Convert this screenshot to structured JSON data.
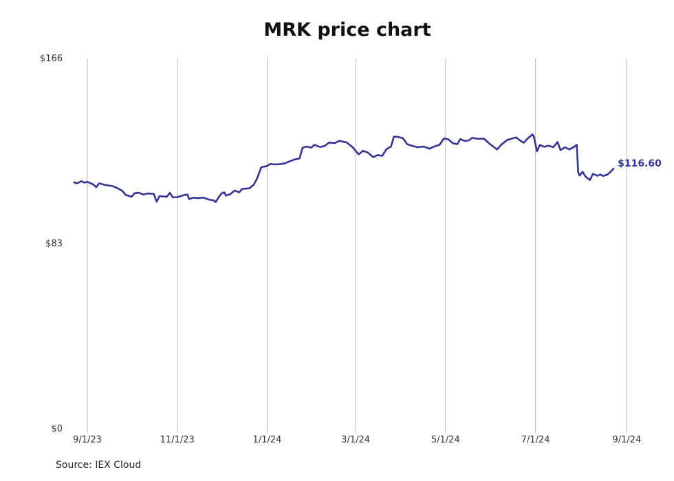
{
  "chart_data": {
    "type": "line",
    "title": "MRK price chart",
    "source": "Source: IEX Cloud",
    "line_color": "#33339a",
    "grid_color": "#bbbbbb",
    "y_ticks": [
      {
        "value": 0,
        "label": "$0"
      },
      {
        "value": 83,
        "label": "$83"
      },
      {
        "value": 166,
        "label": "$166"
      }
    ],
    "ylim": [
      0,
      166
    ],
    "x_range": [
      "2023-08-18",
      "2024-09-05"
    ],
    "x_ticks": [
      {
        "date": "2023-09-01",
        "label": "9/1/23"
      },
      {
        "date": "2023-11-01",
        "label": "11/1/23"
      },
      {
        "date": "2024-01-01",
        "label": "1/1/24"
      },
      {
        "date": "2024-03-01",
        "label": "3/1/24"
      },
      {
        "date": "2024-05-01",
        "label": "5/1/24"
      },
      {
        "date": "2024-07-01",
        "label": "7/1/24"
      },
      {
        "date": "2024-09-01",
        "label": "9/1/24"
      }
    ],
    "grid": "vertical",
    "end_label": "$116.60",
    "series": [
      {
        "points": [
          [
            "2023-08-23",
            110.5
          ],
          [
            "2023-08-25",
            110.0
          ],
          [
            "2023-08-28",
            111.0
          ],
          [
            "2023-08-30",
            110.3
          ],
          [
            "2023-09-01",
            110.7
          ],
          [
            "2023-09-05",
            109.5
          ],
          [
            "2023-09-07",
            108.3
          ],
          [
            "2023-09-09",
            110.0
          ],
          [
            "2023-09-12",
            109.5
          ],
          [
            "2023-09-14",
            109.2
          ],
          [
            "2023-09-18",
            108.8
          ],
          [
            "2023-09-21",
            108.0
          ],
          [
            "2023-09-25",
            106.5
          ],
          [
            "2023-09-27",
            104.8
          ],
          [
            "2023-10-01",
            104.0
          ],
          [
            "2023-10-03",
            105.6
          ],
          [
            "2023-10-06",
            105.8
          ],
          [
            "2023-10-09",
            105.0
          ],
          [
            "2023-10-12",
            105.5
          ],
          [
            "2023-10-16",
            105.3
          ],
          [
            "2023-10-18",
            101.8
          ],
          [
            "2023-10-20",
            104.3
          ],
          [
            "2023-10-25",
            104.0
          ],
          [
            "2023-10-27",
            105.8
          ],
          [
            "2023-10-29",
            103.7
          ],
          [
            "2023-11-01",
            103.8
          ],
          [
            "2023-11-03",
            104.2
          ],
          [
            "2023-11-06",
            104.8
          ],
          [
            "2023-11-08",
            105.0
          ],
          [
            "2023-11-09",
            103.0
          ],
          [
            "2023-11-12",
            103.6
          ],
          [
            "2023-11-15",
            103.4
          ],
          [
            "2023-11-19",
            103.6
          ],
          [
            "2023-11-22",
            102.8
          ],
          [
            "2023-11-26",
            102.3
          ],
          [
            "2023-11-27",
            101.6
          ],
          [
            "2023-11-29",
            103.7
          ],
          [
            "2023-12-01",
            105.5
          ],
          [
            "2023-12-03",
            106.0
          ],
          [
            "2023-12-04",
            104.5
          ],
          [
            "2023-12-07",
            105.2
          ],
          [
            "2023-12-10",
            106.8
          ],
          [
            "2023-12-13",
            106.0
          ],
          [
            "2023-12-15",
            107.5
          ],
          [
            "2023-12-20",
            107.8
          ],
          [
            "2023-12-23",
            109.5
          ],
          [
            "2023-12-25",
            112.0
          ],
          [
            "2023-12-28",
            117.2
          ],
          [
            "2024-01-01",
            117.8
          ],
          [
            "2024-01-03",
            118.7
          ],
          [
            "2024-01-06",
            118.5
          ],
          [
            "2024-01-10",
            118.6
          ],
          [
            "2024-01-13",
            119.0
          ],
          [
            "2024-01-16",
            119.8
          ],
          [
            "2024-01-20",
            120.8
          ],
          [
            "2024-01-23",
            121.2
          ],
          [
            "2024-01-25",
            126.0
          ],
          [
            "2024-01-28",
            126.5
          ],
          [
            "2024-01-31",
            126.0
          ],
          [
            "2024-02-02",
            127.3
          ],
          [
            "2024-02-06",
            126.3
          ],
          [
            "2024-02-09",
            126.8
          ],
          [
            "2024-02-12",
            128.3
          ],
          [
            "2024-02-16",
            128.1
          ],
          [
            "2024-02-19",
            129.1
          ],
          [
            "2024-02-24",
            128.3
          ],
          [
            "2024-02-28",
            126.2
          ],
          [
            "2024-03-03",
            123.0
          ],
          [
            "2024-03-06",
            124.6
          ],
          [
            "2024-03-09",
            123.9
          ],
          [
            "2024-03-13",
            121.8
          ],
          [
            "2024-03-16",
            122.7
          ],
          [
            "2024-03-19",
            122.3
          ],
          [
            "2024-03-22",
            125.4
          ],
          [
            "2024-03-25",
            126.5
          ],
          [
            "2024-03-27",
            131.0
          ],
          [
            "2024-03-30",
            130.8
          ],
          [
            "2024-04-02",
            130.3
          ],
          [
            "2024-04-05",
            127.6
          ],
          [
            "2024-04-08",
            126.9
          ],
          [
            "2024-04-12",
            126.2
          ],
          [
            "2024-04-16",
            126.5
          ],
          [
            "2024-04-20",
            125.6
          ],
          [
            "2024-04-24",
            126.7
          ],
          [
            "2024-04-27",
            127.3
          ],
          [
            "2024-04-30",
            130.2
          ],
          [
            "2024-05-03",
            129.7
          ],
          [
            "2024-05-06",
            128.0
          ],
          [
            "2024-05-09",
            127.6
          ],
          [
            "2024-05-11",
            129.9
          ],
          [
            "2024-05-14",
            129.0
          ],
          [
            "2024-05-17",
            129.3
          ],
          [
            "2024-05-19",
            130.4
          ],
          [
            "2024-05-23",
            130.0
          ],
          [
            "2024-05-27",
            130.1
          ],
          [
            "2024-05-31",
            127.7
          ],
          [
            "2024-06-03",
            126.2
          ],
          [
            "2024-06-05",
            125.2
          ],
          [
            "2024-06-08",
            127.5
          ],
          [
            "2024-06-12",
            129.5
          ],
          [
            "2024-06-15",
            130.1
          ],
          [
            "2024-06-18",
            130.6
          ],
          [
            "2024-06-20",
            129.5
          ],
          [
            "2024-06-23",
            128.2
          ],
          [
            "2024-06-26",
            130.3
          ],
          [
            "2024-06-29",
            132.0
          ],
          [
            "2024-06-30",
            130.8
          ],
          [
            "2024-07-02",
            124.4
          ],
          [
            "2024-07-04",
            127.2
          ],
          [
            "2024-07-07",
            126.4
          ],
          [
            "2024-07-10",
            126.9
          ],
          [
            "2024-07-13",
            126.2
          ],
          [
            "2024-07-16",
            128.5
          ],
          [
            "2024-07-18",
            124.9
          ],
          [
            "2024-07-21",
            126.2
          ],
          [
            "2024-07-24",
            125.2
          ],
          [
            "2024-07-27",
            126.3
          ],
          [
            "2024-07-29",
            127.3
          ],
          [
            "2024-07-30",
            114.9
          ],
          [
            "2024-07-31",
            113.5
          ],
          [
            "2024-08-02",
            115.2
          ],
          [
            "2024-08-04",
            113.0
          ],
          [
            "2024-08-07",
            111.5
          ],
          [
            "2024-08-09",
            114.3
          ],
          [
            "2024-08-12",
            113.4
          ],
          [
            "2024-08-14",
            114.0
          ],
          [
            "2024-08-16",
            113.3
          ],
          [
            "2024-08-19",
            114.0
          ],
          [
            "2024-08-21",
            115.3
          ],
          [
            "2024-08-23",
            116.6
          ]
        ]
      }
    ]
  }
}
